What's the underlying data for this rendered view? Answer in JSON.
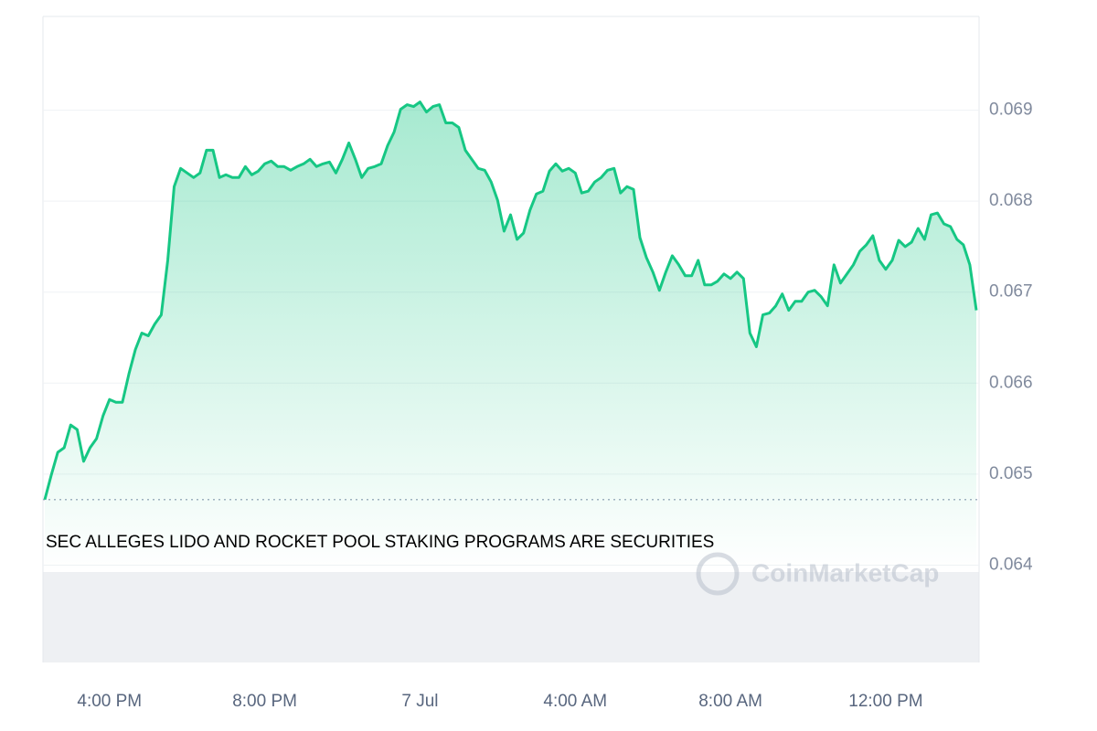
{
  "chart_data": {
    "type": "line",
    "annotation": "SEC ALLEGES LIDO AND ROCKET POOL STAKING PROGRAMS ARE SECURITIES",
    "watermark": "CoinMarketCap",
    "categories": [
      null,
      null,
      null,
      null,
      null,
      null,
      null,
      null,
      null,
      null,
      "4:00 PM",
      null,
      null,
      null,
      null,
      null,
      null,
      null,
      null,
      null,
      null,
      null,
      null,
      null,
      null,
      null,
      null,
      null,
      null,
      null,
      null,
      null,
      null,
      null,
      "8:00 PM",
      null,
      null,
      null,
      null,
      null,
      null,
      null,
      null,
      null,
      null,
      null,
      null,
      null,
      null,
      null,
      null,
      null,
      null,
      null,
      null,
      null,
      null,
      null,
      "7 Jul",
      null,
      null,
      null,
      null,
      null,
      null,
      null,
      null,
      null,
      null,
      null,
      null,
      null,
      null,
      null,
      null,
      null,
      null,
      null,
      null,
      null,
      null,
      null,
      "4:00 AM",
      null,
      null,
      null,
      null,
      null,
      null,
      null,
      null,
      null,
      null,
      null,
      null,
      null,
      null,
      null,
      null,
      null,
      null,
      null,
      null,
      null,
      null,
      null,
      "8:00 AM",
      null,
      null,
      null,
      null,
      null,
      null,
      null,
      null,
      null,
      null,
      null,
      null,
      null,
      null,
      null,
      null,
      null,
      null,
      null,
      null,
      null,
      null,
      null,
      "12:00 PM",
      null,
      null,
      null,
      null,
      null,
      null,
      null,
      null,
      null,
      null,
      null,
      null,
      null,
      null
    ],
    "series": [
      {
        "color": "#16c784",
        "values": [
          0.06472,
          0.06499,
          0.06524,
          0.06529,
          0.06554,
          0.06549,
          0.06514,
          0.06529,
          0.06539,
          0.06564,
          0.06582,
          0.06579,
          0.06579,
          0.0661,
          0.06637,
          0.06655,
          0.06652,
          0.06665,
          0.06675,
          0.06735,
          0.06816,
          0.06836,
          0.06831,
          0.06826,
          0.06831,
          0.06856,
          0.06856,
          0.06826,
          0.06829,
          0.06826,
          0.06826,
          0.06838,
          0.06829,
          0.06833,
          0.06841,
          0.06844,
          0.06838,
          0.06838,
          0.06834,
          0.06838,
          0.06841,
          0.06846,
          0.06838,
          0.06841,
          0.06843,
          0.06831,
          0.06846,
          0.06864,
          0.06846,
          0.06826,
          0.06836,
          0.06838,
          0.06841,
          0.06861,
          0.06876,
          0.06901,
          0.06906,
          0.06904,
          0.06909,
          0.06898,
          0.06904,
          0.06906,
          0.06886,
          0.06886,
          0.06881,
          0.06856,
          0.06846,
          0.06836,
          0.06834,
          0.06821,
          0.06801,
          0.06767,
          0.06785,
          0.06758,
          0.06765,
          0.0679,
          0.06808,
          0.06811,
          0.06833,
          0.06841,
          0.06833,
          0.06836,
          0.06831,
          0.06809,
          0.06811,
          0.06821,
          0.06826,
          0.06834,
          0.06836,
          0.06809,
          0.06816,
          0.06813,
          0.0676,
          0.06738,
          0.06722,
          0.06702,
          0.06722,
          0.0674,
          0.0673,
          0.06718,
          0.06718,
          0.06735,
          0.06708,
          0.06708,
          0.06712,
          0.0672,
          0.06715,
          0.06722,
          0.06715,
          0.06655,
          0.0664,
          0.06675,
          0.06677,
          0.06685,
          0.06698,
          0.0668,
          0.0669,
          0.0669,
          0.067,
          0.06702,
          0.06695,
          0.06685,
          0.0673,
          0.0671,
          0.0672,
          0.0673,
          0.06745,
          0.06752,
          0.06762,
          0.06735,
          0.06725,
          0.06735,
          0.06757,
          0.0675,
          0.06755,
          0.0677,
          0.06758,
          0.06785,
          0.06787,
          0.06775,
          0.06772,
          0.06758,
          0.06752,
          0.0673,
          0.0668
        ]
      }
    ],
    "ylim": [
      0.06293,
      0.07003
    ],
    "yticks": [
      0.064,
      0.065,
      0.066,
      0.067,
      0.068,
      0.069
    ],
    "grid": true
  }
}
